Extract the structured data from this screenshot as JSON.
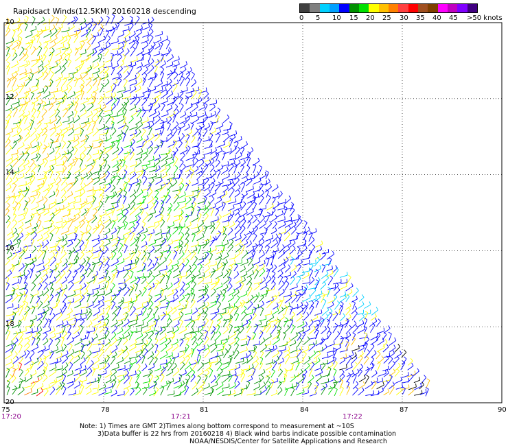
{
  "title": "Rapidsact Winds(12.5KM) 20160218 descending",
  "legend": {
    "colors": [
      "#404040",
      "#7f7f7f",
      "#00d0ff",
      "#00a0ff",
      "#0000ff",
      "#009000",
      "#00e000",
      "#ffff00",
      "#ffc000",
      "#ff8000",
      "#ff4040",
      "#ff0000",
      "#a05020",
      "#804000",
      "#ff00ff",
      "#c000c0",
      "#8000ff",
      "#400080"
    ],
    "labels": [
      "0",
      "5",
      "10",
      "15",
      "20",
      "25",
      "30",
      "35",
      "40",
      "45",
      ">50 knots"
    ]
  },
  "map": {
    "lat_labels": [
      "10",
      "12",
      "14",
      "16",
      "18",
      "20"
    ],
    "lon_labels": [
      "75",
      "78",
      "81",
      "84",
      "87",
      "90"
    ],
    "time_labels": [
      "17:20",
      "17:21",
      "17:22"
    ],
    "lon_range": [
      75,
      90
    ],
    "lat_range": [
      -20,
      -10
    ],
    "swath": "descending",
    "wind_colors": {
      "light": "#00d0ff",
      "moderate": "#0000ff",
      "fresh": "#009000",
      "bright_green": "#00e000",
      "strong": "#ffff00",
      "gale": "#ffc000",
      "high": "#ff8000",
      "storm": "#ff0000",
      "contamination": "#000000"
    }
  },
  "note": {
    "line1": "Note: 1) Times are GMT 2)Times along bottom correspond to measurement at ~10S",
    "line2": "3)Data buffer is 22 hrs from 20160218 4) Black wind barbs indicate possible contamination",
    "line3": "NOAA/NESDIS/Center for Satellite Applications and Research"
  }
}
